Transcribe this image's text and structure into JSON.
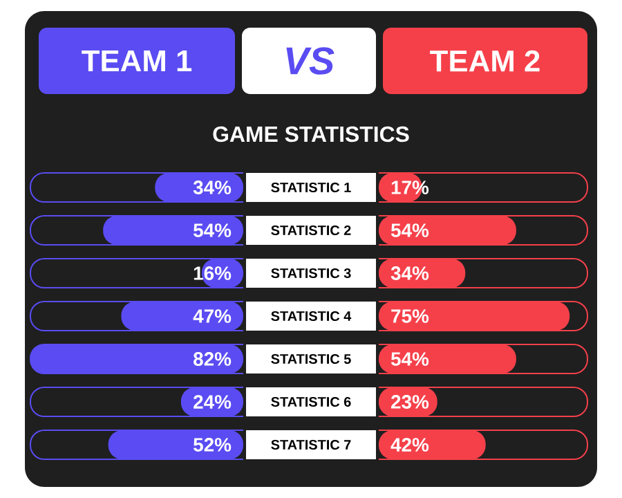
{
  "chart_data": [
    {
      "type": "bar",
      "orientation": "horizontal",
      "title": "GAME STATISTICS",
      "annotations": [
        "VS"
      ],
      "legend": "top",
      "categories": [
        "STATISTIC 1",
        "STATISTIC 2",
        "STATISTIC 3",
        "STATISTIC 4",
        "STATISTIC 5",
        "STATISTIC 6",
        "STATISTIC 7"
      ],
      "series": [
        {
          "name": "TEAM 1",
          "color": "#5a4cf2",
          "values": [
            34,
            54,
            16,
            47,
            82,
            24,
            52
          ],
          "value_labels": [
            "34%",
            "54%",
            "16%",
            "47%",
            "82%",
            "24%",
            "52%"
          ]
        }
      ]
    },
    {
      "type": "bar",
      "orientation": "horizontal",
      "legend": "top",
      "categories": [
        null,
        null,
        null,
        null,
        null,
        null,
        null
      ],
      "series": [
        {
          "name": "TEAM 2",
          "color": "#f5404a",
          "values": [
            17,
            54,
            34,
            75,
            54,
            23,
            42
          ],
          "value_labels": [
            "17%",
            "54%",
            "34%",
            "75%",
            "54%",
            "23%",
            "42%"
          ]
        }
      ]
    }
  ]
}
